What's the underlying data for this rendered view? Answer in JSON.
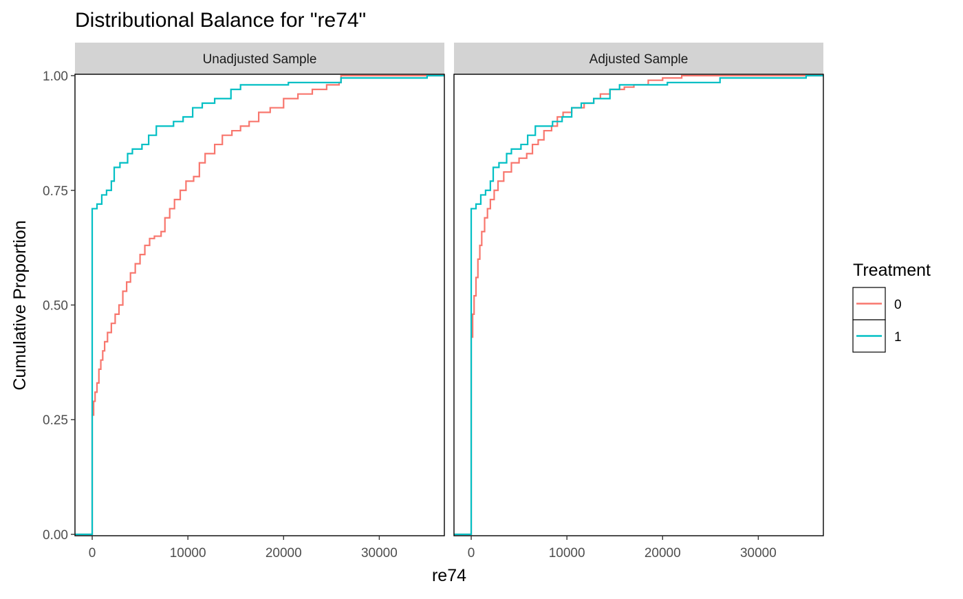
{
  "chart_data": {
    "type": "line",
    "title": "Distributional Balance for \"re74\"",
    "xlabel": "re74",
    "ylabel": "Cumulative Proportion",
    "xlim": [
      -1800,
      36800
    ],
    "ylim": [
      -0.003,
      1.003
    ],
    "x_ticks": [
      0,
      10000,
      20000,
      30000
    ],
    "x_tick_labels": [
      "0",
      "10000",
      "20000",
      "30000"
    ],
    "y_ticks": [
      0,
      0.25,
      0.5,
      0.75,
      1.0
    ],
    "y_tick_labels": [
      "0.00",
      "0.25",
      "0.50",
      "0.75",
      "1.00"
    ],
    "grid": false,
    "legend": {
      "title": "Treatment",
      "position": "right",
      "entries": [
        {
          "label": "0",
          "color": "#F8766D"
        },
        {
          "label": "1",
          "color": "#00BFC4"
        }
      ]
    },
    "panels": [
      {
        "label": "Unadjusted Sample",
        "series": [
          {
            "name": "0",
            "color": "#F8766D",
            "points": [
              [
                -1800,
                0
              ],
              [
                0,
                0
              ],
              [
                0,
                0.26
              ],
              [
                150,
                0.29
              ],
              [
                300,
                0.31
              ],
              [
                500,
                0.33
              ],
              [
                700,
                0.36
              ],
              [
                900,
                0.38
              ],
              [
                1100,
                0.4
              ],
              [
                1300,
                0.42
              ],
              [
                1600,
                0.44
              ],
              [
                2000,
                0.46
              ],
              [
                2400,
                0.48
              ],
              [
                2800,
                0.5
              ],
              [
                3200,
                0.53
              ],
              [
                3600,
                0.55
              ],
              [
                4000,
                0.57
              ],
              [
                4500,
                0.59
              ],
              [
                5000,
                0.61
              ],
              [
                5500,
                0.63
              ],
              [
                6000,
                0.645
              ],
              [
                6500,
                0.65
              ],
              [
                7200,
                0.66
              ],
              [
                7600,
                0.69
              ],
              [
                8100,
                0.71
              ],
              [
                8600,
                0.73
              ],
              [
                9200,
                0.75
              ],
              [
                9800,
                0.77
              ],
              [
                10600,
                0.78
              ],
              [
                11200,
                0.81
              ],
              [
                11800,
                0.83
              ],
              [
                12800,
                0.85
              ],
              [
                13600,
                0.87
              ],
              [
                14600,
                0.88
              ],
              [
                15500,
                0.89
              ],
              [
                16400,
                0.9
              ],
              [
                17400,
                0.92
              ],
              [
                18600,
                0.93
              ],
              [
                20000,
                0.95
              ],
              [
                21500,
                0.96
              ],
              [
                23000,
                0.97
              ],
              [
                24500,
                0.98
              ],
              [
                25800,
                0.985
              ],
              [
                26000,
                1.0
              ],
              [
                36800,
                1.0
              ]
            ]
          },
          {
            "name": "1",
            "color": "#00BFC4",
            "points": [
              [
                -1800,
                0
              ],
              [
                0,
                0
              ],
              [
                0,
                0.71
              ],
              [
                500,
                0.72
              ],
              [
                1000,
                0.74
              ],
              [
                1500,
                0.75
              ],
              [
                2000,
                0.77
              ],
              [
                2300,
                0.8
              ],
              [
                2900,
                0.81
              ],
              [
                3700,
                0.83
              ],
              [
                4200,
                0.84
              ],
              [
                5200,
                0.85
              ],
              [
                5900,
                0.87
              ],
              [
                6700,
                0.89
              ],
              [
                8500,
                0.9
              ],
              [
                9500,
                0.91
              ],
              [
                10500,
                0.93
              ],
              [
                11500,
                0.94
              ],
              [
                12800,
                0.95
              ],
              [
                14500,
                0.97
              ],
              [
                15500,
                0.98
              ],
              [
                20500,
                0.985
              ],
              [
                26000,
                0.995
              ],
              [
                35000,
                1.0
              ],
              [
                36800,
                1.0
              ]
            ]
          }
        ]
      },
      {
        "label": "Adjusted Sample",
        "series": [
          {
            "name": "0",
            "color": "#F8766D",
            "points": [
              [
                -1800,
                0
              ],
              [
                0,
                0
              ],
              [
                0,
                0.43
              ],
              [
                150,
                0.48
              ],
              [
                300,
                0.52
              ],
              [
                500,
                0.56
              ],
              [
                700,
                0.6
              ],
              [
                900,
                0.63
              ],
              [
                1100,
                0.66
              ],
              [
                1400,
                0.69
              ],
              [
                1700,
                0.71
              ],
              [
                2000,
                0.73
              ],
              [
                2400,
                0.75
              ],
              [
                2800,
                0.77
              ],
              [
                3400,
                0.79
              ],
              [
                4200,
                0.81
              ],
              [
                5000,
                0.82
              ],
              [
                5800,
                0.83
              ],
              [
                6400,
                0.85
              ],
              [
                7000,
                0.86
              ],
              [
                7600,
                0.88
              ],
              [
                8400,
                0.89
              ],
              [
                9000,
                0.91
              ],
              [
                9600,
                0.92
              ],
              [
                10500,
                0.93
              ],
              [
                11800,
                0.94
              ],
              [
                12800,
                0.95
              ],
              [
                13500,
                0.96
              ],
              [
                14500,
                0.97
              ],
              [
                16000,
                0.975
              ],
              [
                17000,
                0.98
              ],
              [
                18500,
                0.99
              ],
              [
                20000,
                0.995
              ],
              [
                22000,
                1.0
              ],
              [
                36800,
                1.0
              ]
            ]
          },
          {
            "name": "1",
            "color": "#00BFC4",
            "points": [
              [
                -1800,
                0
              ],
              [
                0,
                0
              ],
              [
                0,
                0.71
              ],
              [
                500,
                0.72
              ],
              [
                1000,
                0.74
              ],
              [
                1500,
                0.75
              ],
              [
                2000,
                0.77
              ],
              [
                2300,
                0.8
              ],
              [
                2900,
                0.81
              ],
              [
                3700,
                0.83
              ],
              [
                4200,
                0.84
              ],
              [
                5200,
                0.85
              ],
              [
                5900,
                0.87
              ],
              [
                6700,
                0.89
              ],
              [
                8500,
                0.9
              ],
              [
                9500,
                0.91
              ],
              [
                10500,
                0.93
              ],
              [
                11500,
                0.94
              ],
              [
                12800,
                0.95
              ],
              [
                14500,
                0.97
              ],
              [
                15500,
                0.98
              ],
              [
                20500,
                0.985
              ],
              [
                26000,
                0.995
              ],
              [
                35000,
                1.0
              ],
              [
                36800,
                1.0
              ]
            ]
          }
        ]
      }
    ]
  }
}
